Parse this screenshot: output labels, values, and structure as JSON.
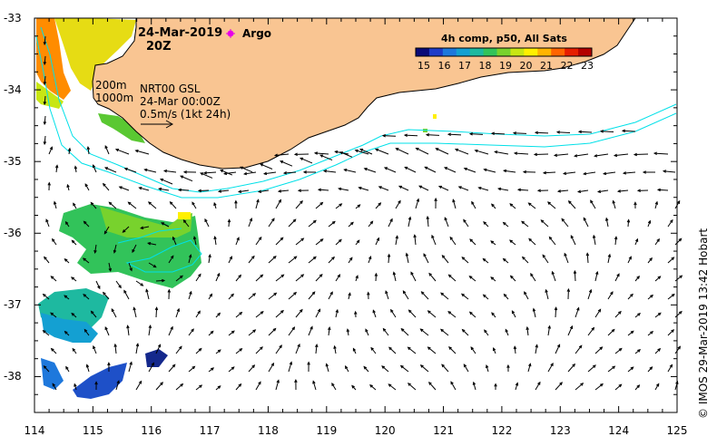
{
  "title": {
    "date": "24-Mar-2019",
    "time": "20Z"
  },
  "argo_legend": {
    "label": "Argo",
    "marker_color": "#e800e8"
  },
  "colorbar": {
    "title": "4h comp, p50, All Sats",
    "ticks": [
      "15",
      "16",
      "17",
      "18",
      "19",
      "20",
      "21",
      "22",
      "23"
    ],
    "colors": [
      "#0a0a78",
      "#1e3cc8",
      "#1e78dc",
      "#14a0d2",
      "#1eb9a0",
      "#32c35a",
      "#78d22d",
      "#c8e614",
      "#fff000",
      "#ffb400",
      "#ff6400",
      "#e61e00",
      "#b40000"
    ]
  },
  "annotations": {
    "depth_200": "200m",
    "depth_1000": "1000m",
    "product": "NRT00 GSL",
    "product_time": "24-Mar 00:00Z",
    "scale_label": "0.5m/s (1kt 24h)"
  },
  "axes": {
    "x_ticks": [
      "114",
      "115",
      "116",
      "117",
      "118",
      "119",
      "120",
      "121",
      "122",
      "123",
      "124",
      "125"
    ],
    "y_ticks": [
      "-33",
      "-34",
      "-35",
      "-36",
      "-37",
      "-38"
    ],
    "x_range": [
      114,
      125
    ],
    "y_range": [
      -38.5,
      -33
    ]
  },
  "credit": "© IMOS 29-Mar-2019 13:42 Hobart",
  "colors": {
    "land": "#f9c592",
    "coastline": "#000000",
    "isobath": "#00e0e8",
    "arrow": "#000000"
  }
}
